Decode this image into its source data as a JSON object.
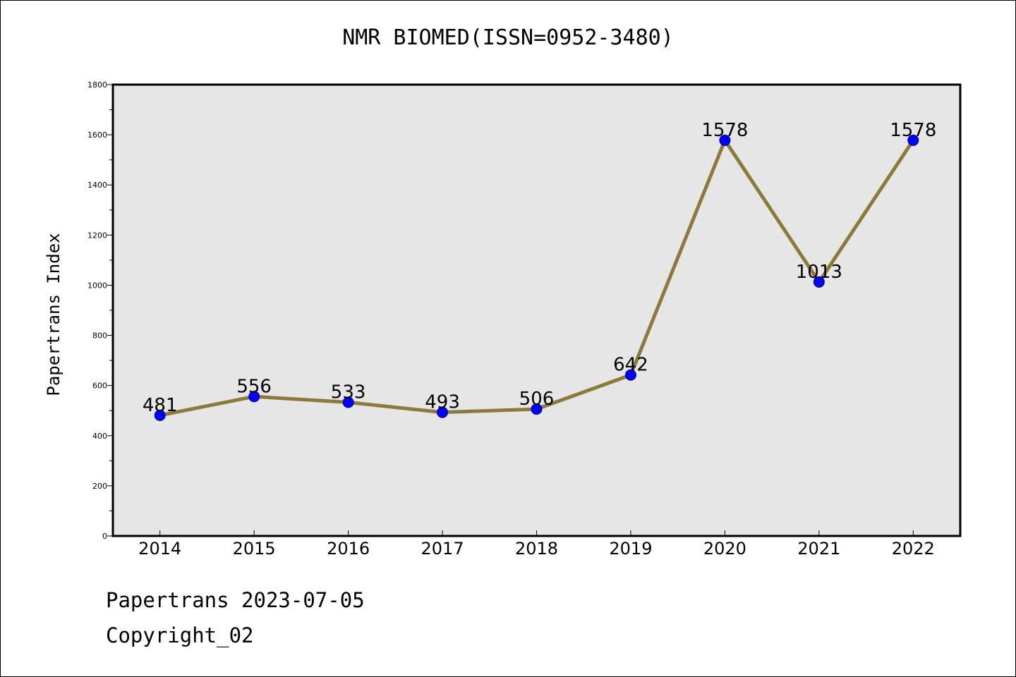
{
  "footer": {
    "line1": "Papertrans 2023-07-05",
    "line2": "Copyright_02"
  },
  "chart_data": {
    "type": "line",
    "title": "NMR BIOMED(ISSN=0952-3480)",
    "xlabel": "",
    "ylabel": "Papertrans Index",
    "categories": [
      "2014",
      "2015",
      "2016",
      "2017",
      "2018",
      "2019",
      "2020",
      "2021",
      "2022"
    ],
    "series": [
      {
        "values": [
          481,
          556,
          533,
          493,
          506,
          642,
          1578,
          1013,
          1578
        ]
      }
    ],
    "data_labels": [
      "481",
      "556",
      "533",
      "493",
      "506",
      "642",
      "1578",
      "1013",
      "1578"
    ],
    "ylim": [
      0,
      1800
    ],
    "y_ticks": [
      0,
      200,
      400,
      600,
      800,
      1000,
      1200,
      1400,
      1600,
      1800
    ],
    "grid": false,
    "legend": "none",
    "colors": {
      "line": "#8c7a3a",
      "marker": "#0000ff",
      "plot_background": "#e6e6e6"
    }
  }
}
